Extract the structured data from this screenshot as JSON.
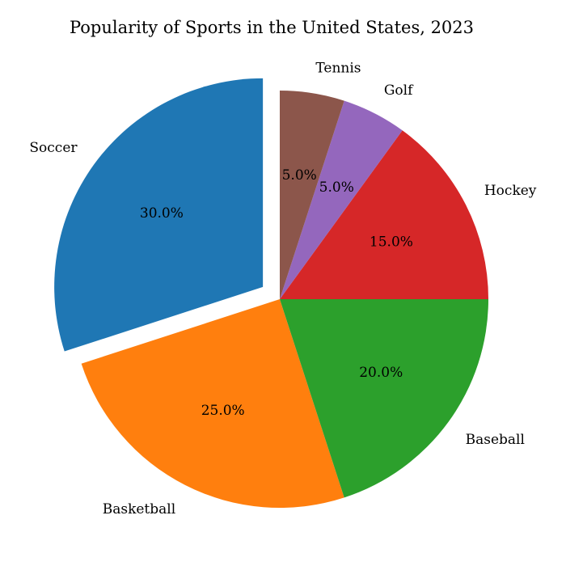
{
  "chart_data": {
    "type": "pie",
    "title": "Popularity of Sports in the United States, 2023",
    "slices": [
      {
        "label": "Soccer",
        "value": 30,
        "percent_label": "30.0%",
        "color": "#1f77b4",
        "exploded": true
      },
      {
        "label": "Basketball",
        "value": 25,
        "percent_label": "25.0%",
        "color": "#ff7f0e",
        "exploded": false
      },
      {
        "label": "Baseball",
        "value": 20,
        "percent_label": "20.0%",
        "color": "#2ca02c",
        "exploded": false
      },
      {
        "label": "Hockey",
        "value": 15,
        "percent_label": "15.0%",
        "color": "#d62728",
        "exploded": false
      },
      {
        "label": "Golf",
        "value": 5,
        "percent_label": "5.0%",
        "color": "#9467bd",
        "exploded": false
      },
      {
        "label": "Tennis",
        "value": 5,
        "percent_label": "5.0%",
        "color": "#8c564b",
        "exploded": false
      }
    ],
    "start_angle_deg": 90,
    "direction": "counterclockwise",
    "legend": "none"
  }
}
